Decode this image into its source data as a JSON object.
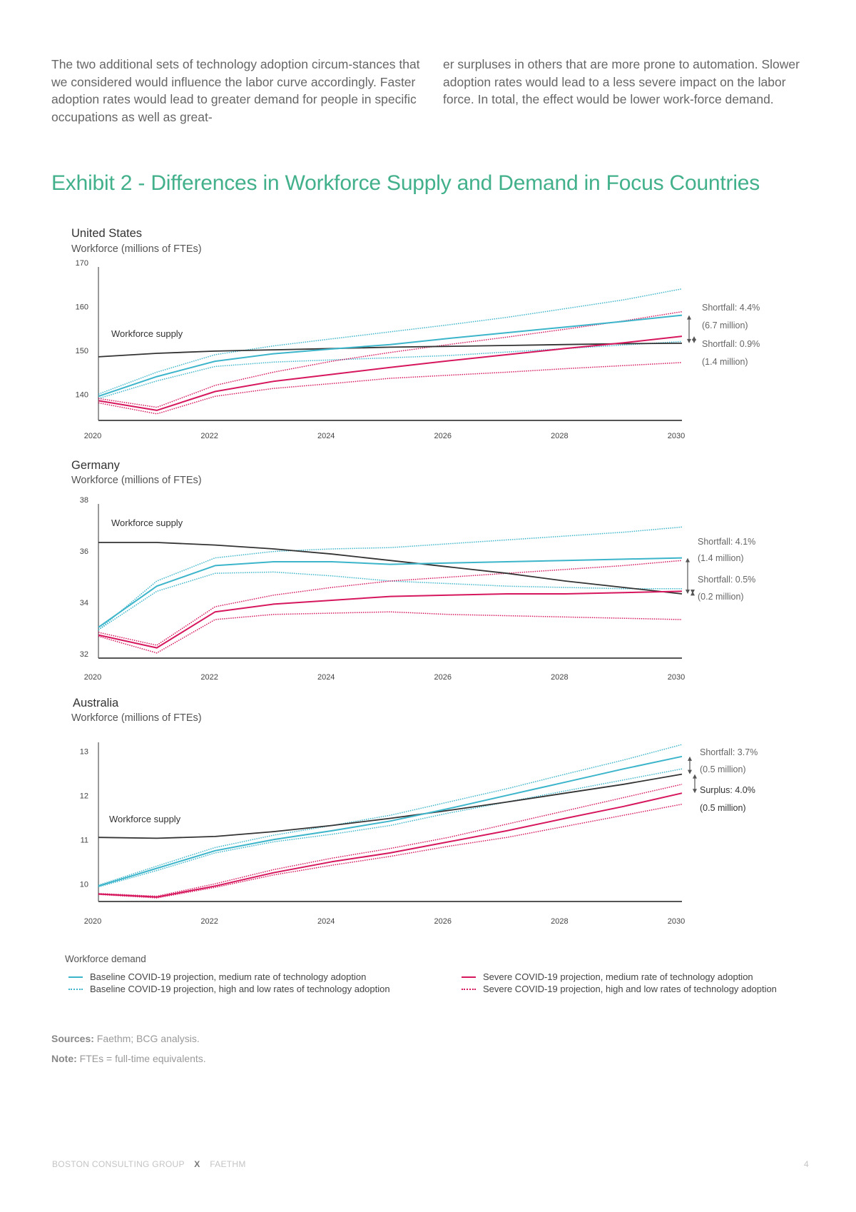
{
  "intro": {
    "left": "The two additional sets of technology adoption circum-stances that we considered would influence the labor curve accordingly. Faster adoption rates would lead to greater demand for people in specific occupations as well as great-",
    "right": "er surpluses in others that are more prone to automation. Slower adoption rates would lead to a less severe impact on the labor force. In total, the effect would be lower work-force demand."
  },
  "exhibit_title": "Exhibit 2 - Differences in Workforce Supply and Demand in Focus Countries",
  "colors": {
    "supply": "#333333",
    "baseline": "#3cb5cb",
    "severe": "#d6175d",
    "title": "#41b08b"
  },
  "chart_data": [
    {
      "type": "line",
      "title": "United States",
      "ylabel": "Workforce (millions of FTEs)",
      "x": [
        2020,
        2021,
        2022,
        2023,
        2024,
        2025,
        2026,
        2027,
        2028,
        2029,
        2030
      ],
      "xticks": [
        "2020",
        "2022",
        "2024",
        "2026",
        "2028",
        "2030"
      ],
      "yticks": [
        "140",
        "150",
        "160",
        "170"
      ],
      "ylim": [
        135,
        170
      ],
      "supply_label": "Workforce supply",
      "series": [
        {
          "key": "supply",
          "values": [
            149.5,
            150.3,
            150.8,
            151.1,
            151.4,
            151.7,
            151.9,
            152.1,
            152.3,
            152.5,
            152.6
          ]
        },
        {
          "key": "baseline_med",
          "values": [
            140.5,
            145,
            148.5,
            150.2,
            151.3,
            152.3,
            153.7,
            155,
            156.3,
            157.6,
            159
          ]
        },
        {
          "key": "baseline_high",
          "values": [
            141,
            146,
            150,
            152,
            153.6,
            155.2,
            156.8,
            158.5,
            160.5,
            162.5,
            165
          ]
        },
        {
          "key": "baseline_low",
          "values": [
            140,
            144,
            147.3,
            148.3,
            148.8,
            149.3,
            149.8,
            150.6,
            151.4,
            152.2,
            153
          ]
        },
        {
          "key": "severe_med",
          "values": [
            139.5,
            137.3,
            141.6,
            143.9,
            145.5,
            147.1,
            148.6,
            150,
            151.4,
            152.7,
            154.2
          ]
        },
        {
          "key": "severe_high",
          "values": [
            140,
            138,
            143,
            146,
            148.5,
            150.5,
            152.3,
            154,
            155.8,
            157.7,
            159.8
          ]
        },
        {
          "key": "severe_low",
          "values": [
            139,
            136.5,
            140.5,
            142.3,
            143.4,
            144.6,
            145.3,
            146,
            146.8,
            147.5,
            148.2
          ]
        }
      ],
      "annotations": [
        "Shortfall: 4.4%",
        "(6.7 million)",
        "Shortfall: 0.9%",
        "(1.4 million)"
      ]
    },
    {
      "type": "line",
      "title": "Germany",
      "ylabel": "Workforce (millions of FTEs)",
      "x": [
        2020,
        2021,
        2022,
        2023,
        2024,
        2025,
        2026,
        2027,
        2028,
        2029,
        2030
      ],
      "xticks": [
        "2020",
        "2022",
        "2024",
        "2026",
        "2028",
        "2030"
      ],
      "yticks": [
        "32",
        "34",
        "36",
        "38"
      ],
      "ylim": [
        32,
        38
      ],
      "supply_label": "Workforce supply",
      "series": [
        {
          "key": "supply",
          "values": [
            36.5,
            36.5,
            36.4,
            36.25,
            36.05,
            35.8,
            35.55,
            35.3,
            35.0,
            34.75,
            34.5
          ]
        },
        {
          "key": "baseline_med",
          "values": [
            33.2,
            34.8,
            35.6,
            35.75,
            35.75,
            35.65,
            35.7,
            35.75,
            35.8,
            35.85,
            35.9
          ]
        },
        {
          "key": "baseline_high",
          "values": [
            33.1,
            35.0,
            35.9,
            36.15,
            36.25,
            36.3,
            36.45,
            36.6,
            36.75,
            36.9,
            37.1
          ]
        },
        {
          "key": "baseline_low",
          "values": [
            33.1,
            34.6,
            35.3,
            35.35,
            35.2,
            35.0,
            34.9,
            34.8,
            34.75,
            34.7,
            34.7
          ]
        },
        {
          "key": "severe_med",
          "values": [
            32.9,
            32.4,
            33.8,
            34.1,
            34.25,
            34.4,
            34.45,
            34.5,
            34.5,
            34.55,
            34.6
          ]
        },
        {
          "key": "severe_high",
          "values": [
            33.0,
            32.5,
            34.0,
            34.45,
            34.75,
            35.0,
            35.15,
            35.3,
            35.45,
            35.6,
            35.8
          ]
        },
        {
          "key": "severe_low",
          "values": [
            32.85,
            32.2,
            33.5,
            33.7,
            33.75,
            33.8,
            33.7,
            33.65,
            33.6,
            33.55,
            33.5
          ]
        }
      ],
      "annotations": [
        "Shortfall: 4.1%",
        "(1.4 million)",
        "Shortfall: 0.5%",
        "(0.2 million)"
      ]
    },
    {
      "type": "line",
      "title": "Australia",
      "ylabel": "Workforce (millions of FTEs)",
      "x": [
        2020,
        2021,
        2022,
        2023,
        2024,
        2025,
        2026,
        2027,
        2028,
        2029,
        2030
      ],
      "xticks": [
        "2020",
        "2022",
        "2024",
        "2026",
        "2028",
        "2030"
      ],
      "yticks": [
        "10",
        "11",
        "12",
        "13"
      ],
      "ylim": [
        9.7,
        13.3
      ],
      "supply_label": "Workforce supply",
      "series": [
        {
          "key": "supply",
          "values": [
            11.15,
            11.13,
            11.17,
            11.28,
            11.42,
            11.58,
            11.76,
            11.95,
            12.15,
            12.35,
            12.58
          ]
        },
        {
          "key": "baseline_med",
          "values": [
            10.05,
            10.45,
            10.85,
            11.1,
            11.3,
            11.52,
            11.8,
            12.1,
            12.4,
            12.7,
            12.98
          ]
        },
        {
          "key": "baseline_high",
          "values": [
            10.07,
            10.5,
            10.92,
            11.2,
            11.42,
            11.65,
            11.95,
            12.25,
            12.58,
            12.9,
            13.25
          ]
        },
        {
          "key": "baseline_low",
          "values": [
            10.03,
            10.4,
            10.8,
            11.05,
            11.22,
            11.42,
            11.7,
            11.95,
            12.2,
            12.45,
            12.7
          ]
        },
        {
          "key": "severe_med",
          "values": [
            9.87,
            9.8,
            10.05,
            10.35,
            10.6,
            10.8,
            11.05,
            11.3,
            11.58,
            11.85,
            12.15
          ]
        },
        {
          "key": "severe_high",
          "values": [
            9.88,
            9.82,
            10.1,
            10.42,
            10.68,
            10.9,
            11.15,
            11.45,
            11.75,
            12.05,
            12.35
          ]
        },
        {
          "key": "severe_low",
          "values": [
            9.86,
            9.78,
            10.02,
            10.3,
            10.52,
            10.72,
            10.95,
            11.15,
            11.4,
            11.65,
            11.9
          ]
        }
      ],
      "annotations": [
        "Shortfall: 3.7%",
        "(0.5 million)",
        "Surplus: 4.0%",
        "(0.5 million)"
      ]
    }
  ],
  "legend": {
    "title": "Workforce demand",
    "items": [
      {
        "label": "Baseline COVID-19 projection, medium rate of technology adoption",
        "style": "solid",
        "color": "#3cb5cb"
      },
      {
        "label": "Baseline COVID-19 projection, high and low rates of technology adoption",
        "style": "dotted",
        "color": "#3cb5cb"
      },
      {
        "label": "Severe COVID-19 projection, medium rate of technology adoption",
        "style": "solid",
        "color": "#d6175d"
      },
      {
        "label": "Severe COVID-19 projection, high and low rates of technology adoption",
        "style": "dotted",
        "color": "#d6175d"
      }
    ]
  },
  "sources": {
    "label": "Sources:",
    "text": " Faethm; BCG analysis."
  },
  "note": {
    "label": "Note:",
    "text": " FTEs = full-time equivalents."
  },
  "footer": {
    "left": "BOSTON CONSULTING GROUP",
    "x": "X",
    "right": "FAETHM",
    "page": "4"
  }
}
